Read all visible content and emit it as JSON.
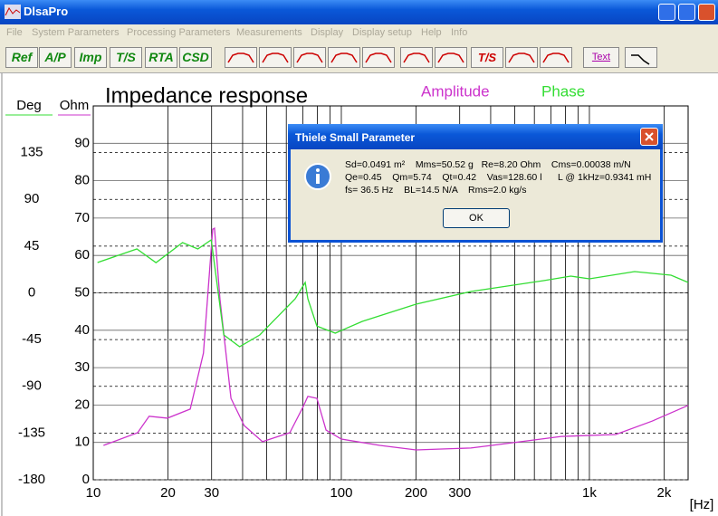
{
  "window": {
    "title": "DlsaPro"
  },
  "menu": [
    "File",
    "System Parameters",
    "Processing Parameters",
    "Measurements",
    "Display",
    "Display setup",
    "Help",
    "Info"
  ],
  "toolbar": {
    "buttons": [
      "Ref",
      "A/P",
      "Imp",
      "T/S",
      "RTA",
      "CSD"
    ],
    "icon_labels": [
      "T/S",
      "Text"
    ]
  },
  "chart_data": {
    "type": "line",
    "title": "Impedance response",
    "x_label": "[Hz]",
    "y_label": "Ohm",
    "y2_label": "Deg",
    "log_x": true,
    "xlim": [
      10,
      2500
    ],
    "xticks": [
      10,
      20,
      30,
      100,
      200,
      300,
      {
        "value": 1000,
        "label": "1k"
      },
      {
        "value": 2000,
        "label": "2k"
      }
    ],
    "xminor": [
      40,
      50,
      60,
      70,
      80,
      90,
      400,
      500,
      600,
      700,
      800,
      900
    ],
    "ylim": [
      0,
      100
    ],
    "yticks": [
      0,
      10,
      20,
      30,
      40,
      50,
      60,
      70,
      80,
      90
    ],
    "y2lim": [
      -180,
      180
    ],
    "y2ticks": [
      -180,
      -135,
      -90,
      -45,
      0,
      45,
      90,
      135
    ],
    "grid": true,
    "series": [
      {
        "name": "Amplitude",
        "color": "#cc33cc",
        "x": [
          11,
          15.1,
          16.8,
          19.9,
          24.6,
          27.8,
          30.3,
          30.8,
          32.4,
          35.9,
          40.6,
          48.1,
          54.6,
          62,
          70,
          73.3,
          79.7,
          86.8,
          100,
          143,
          200,
          333,
          465,
          770,
          1276,
          1790,
          2500
        ],
        "values": [
          9.2,
          12.6,
          17,
          16.5,
          18.9,
          33.9,
          67,
          67.3,
          48.4,
          21.8,
          14.5,
          10.2,
          11.4,
          12.6,
          19.4,
          22.3,
          21.8,
          13.3,
          10.9,
          9.2,
          8,
          8.5,
          9.7,
          11.6,
          12.1,
          15.7,
          19.9
        ]
      },
      {
        "name": "Phase",
        "color": "#33dd33",
        "axis": "y2",
        "x": [
          10.4,
          15,
          17.9,
          22.9,
          26.4,
          29.9,
          33.6,
          38.9,
          46.9,
          55.3,
          65.2,
          71.5,
          73.3,
          79.7,
          94.5,
          121.5,
          200,
          333,
          654,
          841,
          1000,
          1521,
          2135,
          2500
        ],
        "values": [
          29.2,
          42.3,
          29,
          48.4,
          42.3,
          51,
          -40.5,
          -51.9,
          -40.5,
          -23,
          -5.7,
          10,
          -5.7,
          -32,
          -38.8,
          -27.5,
          -10.9,
          1.3,
          11.8,
          16.1,
          13.5,
          20.5,
          17,
          10
        ]
      }
    ]
  },
  "dialog": {
    "title": "Thiele Small Parameter",
    "lines": [
      "Sd=0.0491 m²    Mms=50.52 g   Re=8.20 Ohm    Cms=0.00038 m/N",
      "Qe=0.45    Qm=5.74    Qt=0.42    Vas=128.60 l      L @ 1kHz=0.9341 mH",
      "fs= 36.5 Hz    BL=14.5 N/A    Rms=2.0 kg/s"
    ],
    "button": "OK"
  }
}
